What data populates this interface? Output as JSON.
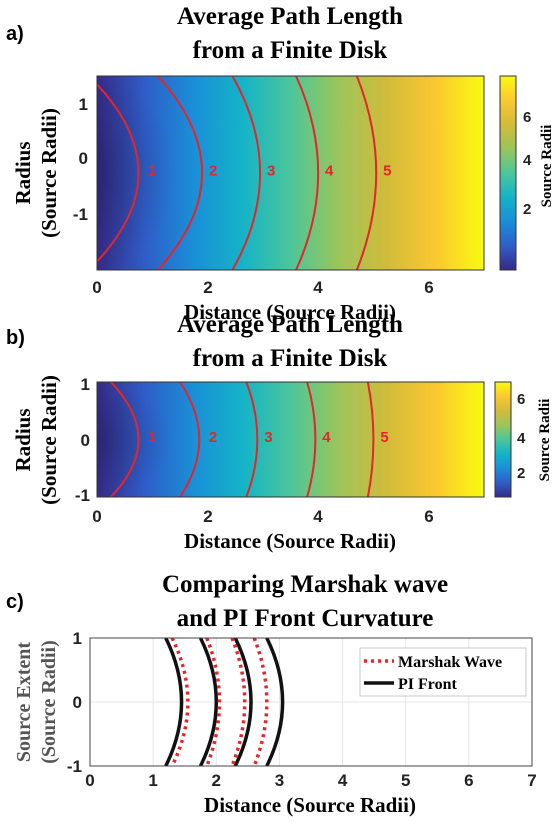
{
  "panel_labels": [
    "a)",
    "b)",
    "c)"
  ],
  "colormap_stops": [
    "#352a87",
    "#2f5ec8",
    "#1a8fd8",
    "#14b3c8",
    "#4bc69a",
    "#9bc55a",
    "#d2bb3a",
    "#fbc830",
    "#f9fb0e"
  ],
  "contour_color": "#e3262b",
  "chart_data": [
    {
      "type": "heatmap",
      "title": "Average Path Length from a Finite Disk",
      "title_lines": [
        "Average Path Length",
        "from a Finite Disk"
      ],
      "xlabel": "Distance (Source Radii)",
      "ylabel_lines": [
        "Radius",
        "(Source Radii)"
      ],
      "xlim": [
        0,
        7
      ],
      "ylim": [
        -1.5,
        1.5
      ],
      "xticks": [
        "0",
        "2",
        "4",
        "6"
      ],
      "yticks": [
        "1",
        "0",
        "-1"
      ],
      "colorbar": {
        "label": "Source Radii",
        "range": [
          0.8,
          7.3
        ],
        "ticks": [
          "2",
          "4",
          "6"
        ]
      },
      "contours": [
        {
          "label": "1",
          "apex_x": 0.75,
          "edge_x": -0.15,
          "label_x": 1.0
        },
        {
          "label": "2",
          "apex_x": 1.9,
          "edge_x": 1.1,
          "label_x": 2.1
        },
        {
          "label": "3",
          "apex_x": 2.95,
          "edge_x": 2.45,
          "label_x": 3.15
        },
        {
          "label": "4",
          "apex_x": 4.0,
          "edge_x": 3.6,
          "label_x": 4.2
        },
        {
          "label": "5",
          "apex_x": 5.05,
          "edge_x": 4.7,
          "label_x": 5.25
        }
      ]
    },
    {
      "type": "heatmap",
      "title": "Average Path Length from a Finite Disk",
      "title_lines": [
        "Average Path Length",
        "from a Finite Disk"
      ],
      "xlabel": "Distance (Source Radii)",
      "ylabel_lines": [
        "Radius",
        "(Source Radii)"
      ],
      "xlim": [
        0,
        7
      ],
      "ylim": [
        -1,
        1
      ],
      "xticks": [
        "0",
        "2",
        "4",
        "6"
      ],
      "yticks": [
        "1",
        "0",
        "-1"
      ],
      "colorbar": {
        "label": "Source Radii",
        "range": [
          0.8,
          7.3
        ],
        "ticks": [
          "2",
          "4",
          "6"
        ]
      },
      "contours": [
        {
          "label": "1",
          "apex_x": 0.75,
          "edge_x": 0.25,
          "label_x": 1.0
        },
        {
          "label": "2",
          "apex_x": 1.85,
          "edge_x": 1.5,
          "label_x": 2.1
        },
        {
          "label": "3",
          "apex_x": 2.9,
          "edge_x": 2.7,
          "label_x": 3.1
        },
        {
          "label": "4",
          "apex_x": 3.95,
          "edge_x": 3.8,
          "label_x": 4.15
        },
        {
          "label": "5",
          "apex_x": 5.0,
          "edge_x": 4.9,
          "label_x": 5.2
        }
      ]
    },
    {
      "type": "line",
      "title": "Comparing Marshak wave and PI Front Curvature",
      "title_lines": [
        "Comparing Marshak wave",
        "and PI Front Curvature"
      ],
      "xlabel": "Distance (Source Radii)",
      "ylabel_lines": [
        "Source Extent",
        "(Source Radii)"
      ],
      "xlim": [
        0,
        7
      ],
      "ylim": [
        -1,
        1
      ],
      "xticks": [
        "0",
        "1",
        "2",
        "3",
        "4",
        "5",
        "6",
        "7"
      ],
      "yticks": [
        "1",
        "0",
        "-1"
      ],
      "grid": true,
      "legend_position": "top-right",
      "series": [
        {
          "name": "Marshak Wave",
          "color": "#e3262b",
          "style": "dotted",
          "curves": [
            {
              "apex_x": 1.55,
              "edge_x": 1.3
            },
            {
              "apex_x": 2.05,
              "edge_x": 1.85
            },
            {
              "apex_x": 2.45,
              "edge_x": 2.25
            },
            {
              "apex_x": 2.8,
              "edge_x": 2.6
            }
          ]
        },
        {
          "name": "PI Front",
          "color": "#111111",
          "style": "solid",
          "curves": [
            {
              "apex_x": 1.45,
              "edge_x": 1.2
            },
            {
              "apex_x": 2.0,
              "edge_x": 1.75
            },
            {
              "apex_x": 2.55,
              "edge_x": 2.3
            },
            {
              "apex_x": 3.05,
              "edge_x": 2.8
            }
          ]
        }
      ]
    }
  ]
}
